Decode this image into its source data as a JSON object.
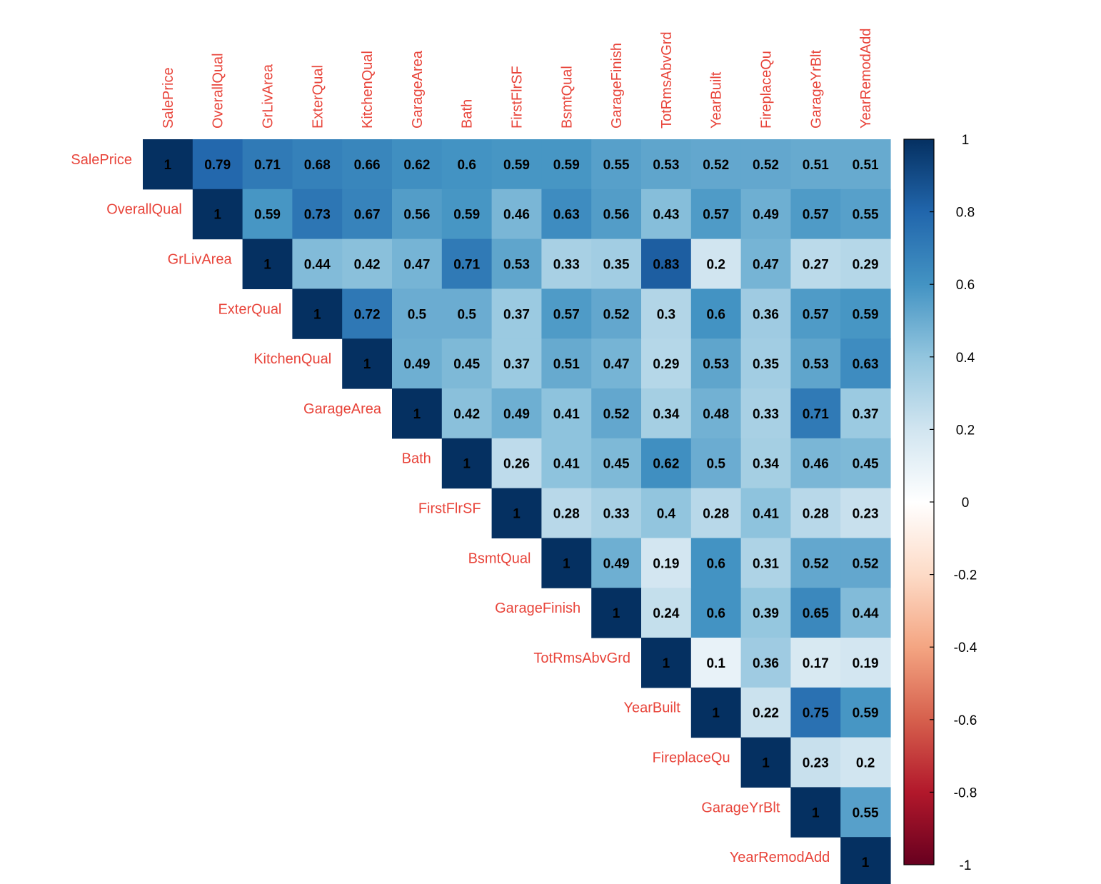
{
  "chart_data": {
    "type": "heatmap",
    "layout": "upper-triangle",
    "variables": [
      "SalePrice",
      "OverallQual",
      "GrLivArea",
      "ExterQual",
      "KitchenQual",
      "GarageArea",
      "Bath",
      "FirstFlrSF",
      "BsmtQual",
      "GarageFinish",
      "TotRmsAbvGrd",
      "YearBuilt",
      "FireplaceQu",
      "GarageYrBlt",
      "YearRemodAdd"
    ],
    "matrix": [
      [
        1,
        0.79,
        0.71,
        0.68,
        0.66,
        0.62,
        0.6,
        0.59,
        0.59,
        0.55,
        0.53,
        0.52,
        0.52,
        0.51,
        0.51
      ],
      [
        1,
        0.59,
        0.73,
        0.67,
        0.56,
        0.59,
        0.46,
        0.63,
        0.56,
        0.43,
        0.57,
        0.49,
        0.57,
        0.55
      ],
      [
        1,
        0.44,
        0.42,
        0.47,
        0.71,
        0.53,
        0.33,
        0.35,
        0.83,
        0.2,
        0.47,
        0.27,
        0.29
      ],
      [
        1,
        0.72,
        0.5,
        0.5,
        0.37,
        0.57,
        0.52,
        0.3,
        0.6,
        0.36,
        0.57,
        0.59
      ],
      [
        1,
        0.49,
        0.45,
        0.37,
        0.51,
        0.47,
        0.29,
        0.53,
        0.35,
        0.53,
        0.63
      ],
      [
        1,
        0.42,
        0.49,
        0.41,
        0.52,
        0.34,
        0.48,
        0.33,
        0.71,
        0.37
      ],
      [
        1,
        0.26,
        0.41,
        0.45,
        0.62,
        0.5,
        0.34,
        0.46,
        0.45
      ],
      [
        1,
        0.28,
        0.33,
        0.4,
        0.28,
        0.41,
        0.28,
        0.23
      ],
      [
        1,
        0.49,
        0.19,
        0.6,
        0.31,
        0.52,
        0.52
      ],
      [
        1,
        0.24,
        0.6,
        0.39,
        0.65,
        0.44
      ],
      [
        1,
        0.1,
        0.36,
        0.17,
        0.19
      ],
      [
        1,
        0.22,
        0.75,
        0.59
      ],
      [
        1,
        0.23,
        0.2
      ],
      [
        1,
        0.55
      ],
      [
        1
      ]
    ],
    "colorbar": {
      "range": [
        -1,
        1
      ],
      "ticks": [
        "1",
        "0.8",
        "0.6",
        "0.4",
        "0.2",
        "0",
        "-0.2",
        "-0.4",
        "-0.6",
        "-0.8",
        "-1"
      ],
      "tick_values": [
        1,
        0.8,
        0.6,
        0.4,
        0.2,
        0,
        -0.2,
        -0.4,
        -0.6,
        -0.8,
        -1
      ],
      "colors": {
        "-1": "#67001f",
        "-0.8": "#b2182b",
        "-0.6": "#d6604d",
        "-0.4": "#f4a582",
        "-0.2": "#fddbc7",
        "0": "#ffffff",
        "0.2": "#d1e5f0",
        "0.4": "#92c5de",
        "0.6": "#4393c3",
        "0.8": "#2166ac",
        "1": "#053061"
      }
    },
    "label_color": "#e8443a",
    "grid": false,
    "legend": "colorbar-right"
  }
}
